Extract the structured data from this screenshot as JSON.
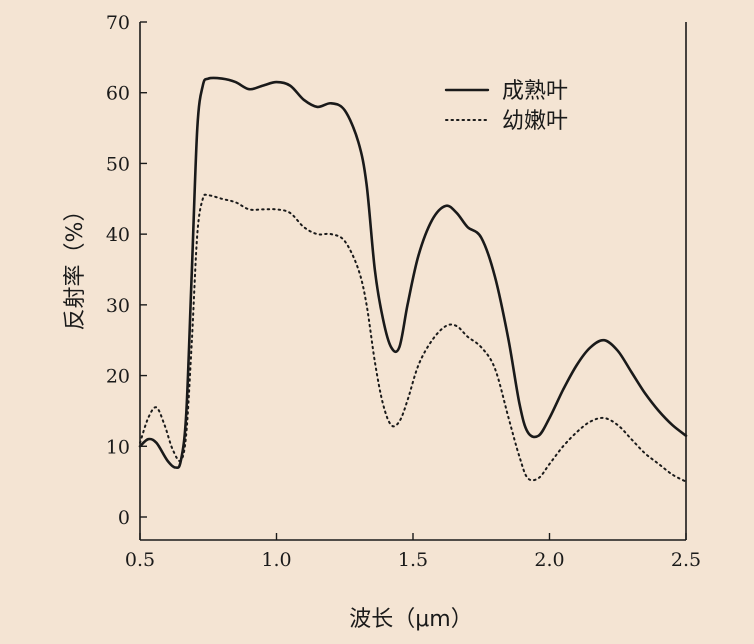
{
  "chart_data": {
    "type": "line",
    "xlabel": "波长（μm）",
    "ylabel": "反射率（%）",
    "xlim": [
      0.5,
      2.5
    ],
    "ylim": [
      0,
      70
    ],
    "x_ticks": [
      "0.5",
      "1.0",
      "1.5",
      "2.0",
      "2.5"
    ],
    "x_tick_values": [
      0.5,
      1.0,
      1.5,
      2.0,
      2.5
    ],
    "y_ticks": [
      "0",
      "10",
      "20",
      "30",
      "40",
      "50",
      "60",
      "70"
    ],
    "y_tick_values": [
      0,
      10,
      20,
      30,
      40,
      50,
      60,
      70
    ],
    "grid": false,
    "legend_position": "top-right",
    "series": [
      {
        "name": "成熟叶",
        "style": "solid",
        "color": "#1a1a1a",
        "points": [
          [
            0.5,
            10
          ],
          [
            0.53,
            11
          ],
          [
            0.56,
            10.5
          ],
          [
            0.6,
            8
          ],
          [
            0.63,
            7
          ],
          [
            0.65,
            8
          ],
          [
            0.67,
            15
          ],
          [
            0.69,
            35
          ],
          [
            0.71,
            55
          ],
          [
            0.73,
            61
          ],
          [
            0.75,
            62
          ],
          [
            0.8,
            62
          ],
          [
            0.85,
            61.5
          ],
          [
            0.9,
            60.5
          ],
          [
            0.95,
            61
          ],
          [
            1.0,
            61.5
          ],
          [
            1.05,
            61
          ],
          [
            1.1,
            59
          ],
          [
            1.15,
            58
          ],
          [
            1.2,
            58.5
          ],
          [
            1.25,
            57.5
          ],
          [
            1.3,
            53
          ],
          [
            1.33,
            47
          ],
          [
            1.36,
            35
          ],
          [
            1.39,
            28
          ],
          [
            1.42,
            24
          ],
          [
            1.45,
            24
          ],
          [
            1.48,
            30
          ],
          [
            1.52,
            37
          ],
          [
            1.57,
            42
          ],
          [
            1.62,
            44
          ],
          [
            1.66,
            43
          ],
          [
            1.7,
            41
          ],
          [
            1.75,
            39.5
          ],
          [
            1.8,
            34
          ],
          [
            1.85,
            25
          ],
          [
            1.89,
            16
          ],
          [
            1.92,
            12
          ],
          [
            1.96,
            11.5
          ],
          [
            2.0,
            14
          ],
          [
            2.05,
            18
          ],
          [
            2.1,
            21.5
          ],
          [
            2.15,
            24
          ],
          [
            2.2,
            25
          ],
          [
            2.25,
            23.5
          ],
          [
            2.3,
            20.5
          ],
          [
            2.35,
            17.5
          ],
          [
            2.4,
            15
          ],
          [
            2.45,
            13
          ],
          [
            2.5,
            11.5
          ]
        ]
      },
      {
        "name": "幼嫩叶",
        "style": "dotted",
        "color": "#1a1a1a",
        "points": [
          [
            0.5,
            10.5
          ],
          [
            0.53,
            14
          ],
          [
            0.56,
            15.5
          ],
          [
            0.59,
            13
          ],
          [
            0.62,
            9.5
          ],
          [
            0.65,
            8
          ],
          [
            0.67,
            12
          ],
          [
            0.69,
            25
          ],
          [
            0.71,
            40
          ],
          [
            0.73,
            45
          ],
          [
            0.75,
            45.5
          ],
          [
            0.8,
            45
          ],
          [
            0.85,
            44.5
          ],
          [
            0.9,
            43.5
          ],
          [
            0.95,
            43.5
          ],
          [
            1.0,
            43.5
          ],
          [
            1.05,
            43
          ],
          [
            1.1,
            41
          ],
          [
            1.15,
            40
          ],
          [
            1.2,
            40
          ],
          [
            1.25,
            39
          ],
          [
            1.3,
            35
          ],
          [
            1.33,
            30
          ],
          [
            1.36,
            22
          ],
          [
            1.39,
            16
          ],
          [
            1.42,
            13
          ],
          [
            1.45,
            13.5
          ],
          [
            1.48,
            16.5
          ],
          [
            1.52,
            21.5
          ],
          [
            1.57,
            25
          ],
          [
            1.62,
            27
          ],
          [
            1.66,
            27
          ],
          [
            1.7,
            25.5
          ],
          [
            1.75,
            24
          ],
          [
            1.8,
            21
          ],
          [
            1.85,
            14
          ],
          [
            1.89,
            8.5
          ],
          [
            1.92,
            5.5
          ],
          [
            1.96,
            5.5
          ],
          [
            2.0,
            7.5
          ],
          [
            2.05,
            10
          ],
          [
            2.1,
            12
          ],
          [
            2.15,
            13.5
          ],
          [
            2.2,
            14
          ],
          [
            2.25,
            13
          ],
          [
            2.3,
            11
          ],
          [
            2.35,
            9
          ],
          [
            2.4,
            7.5
          ],
          [
            2.45,
            6
          ],
          [
            2.5,
            5
          ]
        ]
      }
    ]
  }
}
